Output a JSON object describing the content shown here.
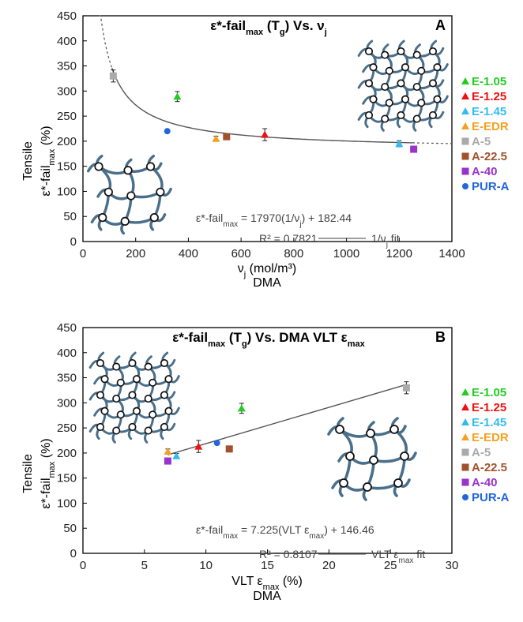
{
  "legend": [
    {
      "label": "E-1.05",
      "color": "#22cc22",
      "marker": "triangle"
    },
    {
      "label": "E-1.25",
      "color": "#ee1111",
      "marker": "triangle"
    },
    {
      "label": "E-1.45",
      "color": "#33bbee",
      "marker": "triangle"
    },
    {
      "label": "E-EDR",
      "color": "#f5a020",
      "marker": "triangle"
    },
    {
      "label": "A-5",
      "color": "#aaaaaa",
      "marker": "square"
    },
    {
      "label": "A-22.5",
      "color": "#a0522d",
      "marker": "square"
    },
    {
      "label": "A-40",
      "color": "#9933cc",
      "marker": "square"
    },
    {
      "label": "PUR-A",
      "color": "#2266dd",
      "marker": "circle"
    }
  ],
  "chart_data": [
    {
      "type": "scatter",
      "panel_letter": "A",
      "title": {
        "main": "ε*-fail",
        "sub1": "max",
        "mid": " (T",
        "sub2": "g",
        "end": ") Vs. ν",
        "sub3": "j"
      },
      "ylabel": {
        "line1": "Tensile",
        "line2": "ε*-fail",
        "sub": "max",
        "tail": " (%)"
      },
      "xlabel": {
        "line1_a": "ν",
        "line1_sub": "j",
        "line1_b": " (mol/m³)",
        "line2": "DMA"
      },
      "xlim": [
        0,
        1400
      ],
      "ylim": [
        0,
        450
      ],
      "xticks": [
        0,
        200,
        400,
        600,
        800,
        1000,
        1200,
        1400
      ],
      "yticks": [
        0,
        50,
        100,
        150,
        200,
        250,
        300,
        350,
        400,
        450
      ],
      "tick_labels_x": [
        "0",
        "200",
        "400",
        "600",
        "800",
        "1000",
        "1200",
        "1400"
      ],
      "tick_labels_y": [
        "0",
        "50",
        "100",
        "150",
        "200",
        "250",
        "300",
        "350",
        "400",
        "450"
      ],
      "points": [
        {
          "series": "A-5",
          "x": 115,
          "y": 330,
          "err": 12
        },
        {
          "series": "E-1.05",
          "x": 358,
          "y": 289,
          "err": 10
        },
        {
          "series": "PUR-A",
          "x": 320,
          "y": 220,
          "err": 0
        },
        {
          "series": "E-EDR",
          "x": 505,
          "y": 205,
          "err": 5
        },
        {
          "series": "A-22.5",
          "x": 545,
          "y": 209,
          "err": 0
        },
        {
          "series": "E-1.25",
          "x": 690,
          "y": 213,
          "err": 12
        },
        {
          "series": "E-1.45",
          "x": 1200,
          "y": 195,
          "err": 6
        },
        {
          "series": "A-40",
          "x": 1255,
          "y": 184,
          "err": 0
        }
      ],
      "fit": {
        "type": "reciprocal",
        "a": 17970,
        "b": 182.44,
        "solid_range": [
          110,
          1250
        ],
        "dashed_range": [
          [
            60,
            110
          ],
          [
            1250,
            1400
          ]
        ]
      },
      "equation": {
        "a": "ε*-fail",
        "a_sub": "max",
        "b": " = 17970(1/ν",
        "b_sub": "j",
        "c": ") + 182.44"
      },
      "r2": "R² = 0.7821",
      "fit_label": {
        "a": "1/ν",
        "a_sub": "j",
        "b": " fit"
      }
    },
    {
      "type": "scatter",
      "panel_letter": "B",
      "title": {
        "main": "ε*-fail",
        "sub1": "max",
        "mid": " (T",
        "sub2": "g",
        "end": ") Vs. DMA VLT ε",
        "sub3": "max"
      },
      "ylabel": {
        "line1": "Tensile",
        "line2": "ε*-fail",
        "sub": "max",
        "tail": " (%)"
      },
      "xlabel": {
        "line1_a": "VLT ε",
        "line1_sub": "max",
        "line1_b": " (%)",
        "line2": "DMA"
      },
      "xlim": [
        0,
        30
      ],
      "ylim": [
        0,
        450
      ],
      "xticks": [
        0,
        5,
        10,
        15,
        20,
        25,
        30
      ],
      "yticks": [
        0,
        50,
        100,
        150,
        200,
        250,
        300,
        350,
        400,
        450
      ],
      "tick_labels_x": [
        "0",
        "5",
        "10",
        "15",
        "20",
        "25",
        "30"
      ],
      "tick_labels_y": [
        "0",
        "50",
        "100",
        "150",
        "200",
        "250",
        "300",
        "350",
        "400",
        "450"
      ],
      "points": [
        {
          "series": "A-5",
          "x": 26.3,
          "y": 330,
          "err": 12
        },
        {
          "series": "E-1.05",
          "x": 12.9,
          "y": 289,
          "err": 10
        },
        {
          "series": "E-1.25",
          "x": 9.4,
          "y": 213,
          "err": 12
        },
        {
          "series": "PUR-A",
          "x": 10.9,
          "y": 220,
          "err": 0
        },
        {
          "series": "A-22.5",
          "x": 11.9,
          "y": 208,
          "err": 0
        },
        {
          "series": "E-EDR",
          "x": 6.9,
          "y": 203,
          "err": 5
        },
        {
          "series": "E-1.45",
          "x": 7.6,
          "y": 194,
          "err": 5
        },
        {
          "series": "A-40",
          "x": 6.9,
          "y": 184,
          "err": 0
        }
      ],
      "fit": {
        "type": "linear",
        "a": 7.225,
        "b": 146.46,
        "solid_range": [
          6.9,
          26.3
        ]
      },
      "equation": {
        "a": "ε*-fail",
        "a_sub": "max",
        "b": " = 7.225(VLT ε",
        "b_sub": "max",
        "c": ") + 146.46"
      },
      "r2": "R² = 0.8107",
      "fit_label": {
        "a": "VLT ε",
        "a_sub": "max",
        "b": " fit"
      }
    }
  ]
}
